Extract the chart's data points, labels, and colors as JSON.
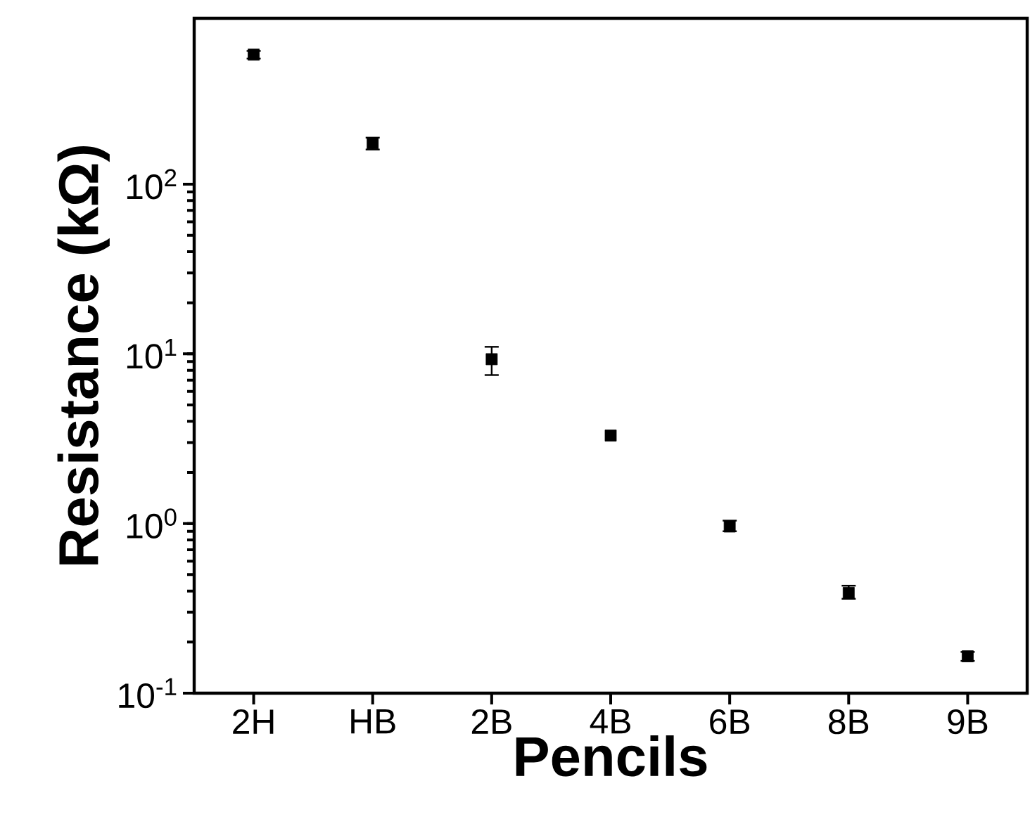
{
  "chart_data": {
    "type": "scatter",
    "xlabel": "Pencils",
    "ylabel": "Resistance (kΩ)",
    "categories": [
      "2H",
      "HB",
      "2B",
      "4B",
      "6B",
      "8B",
      "9B"
    ],
    "values": [
      580,
      174,
      9.3,
      3.3,
      0.96,
      0.39,
      0.165
    ],
    "errors": [
      [
        550,
        610
      ],
      [
        160,
        188
      ],
      [
        7.5,
        11
      ],
      null,
      [
        0.9,
        1.04
      ],
      [
        0.36,
        0.43
      ],
      [
        0.155,
        0.175
      ]
    ],
    "color": "#000000",
    "marker": "square",
    "log": "y",
    "ylim": [
      0.1,
      950
    ],
    "yticks": [
      {
        "value": 0.1,
        "label": "10$^{-1}$"
      },
      {
        "value": 1,
        "label": "10$^{0}$"
      },
      {
        "value": 10,
        "label": "10$^{1}$"
      },
      {
        "value": 100,
        "label": "10$^{2}$"
      }
    ]
  }
}
